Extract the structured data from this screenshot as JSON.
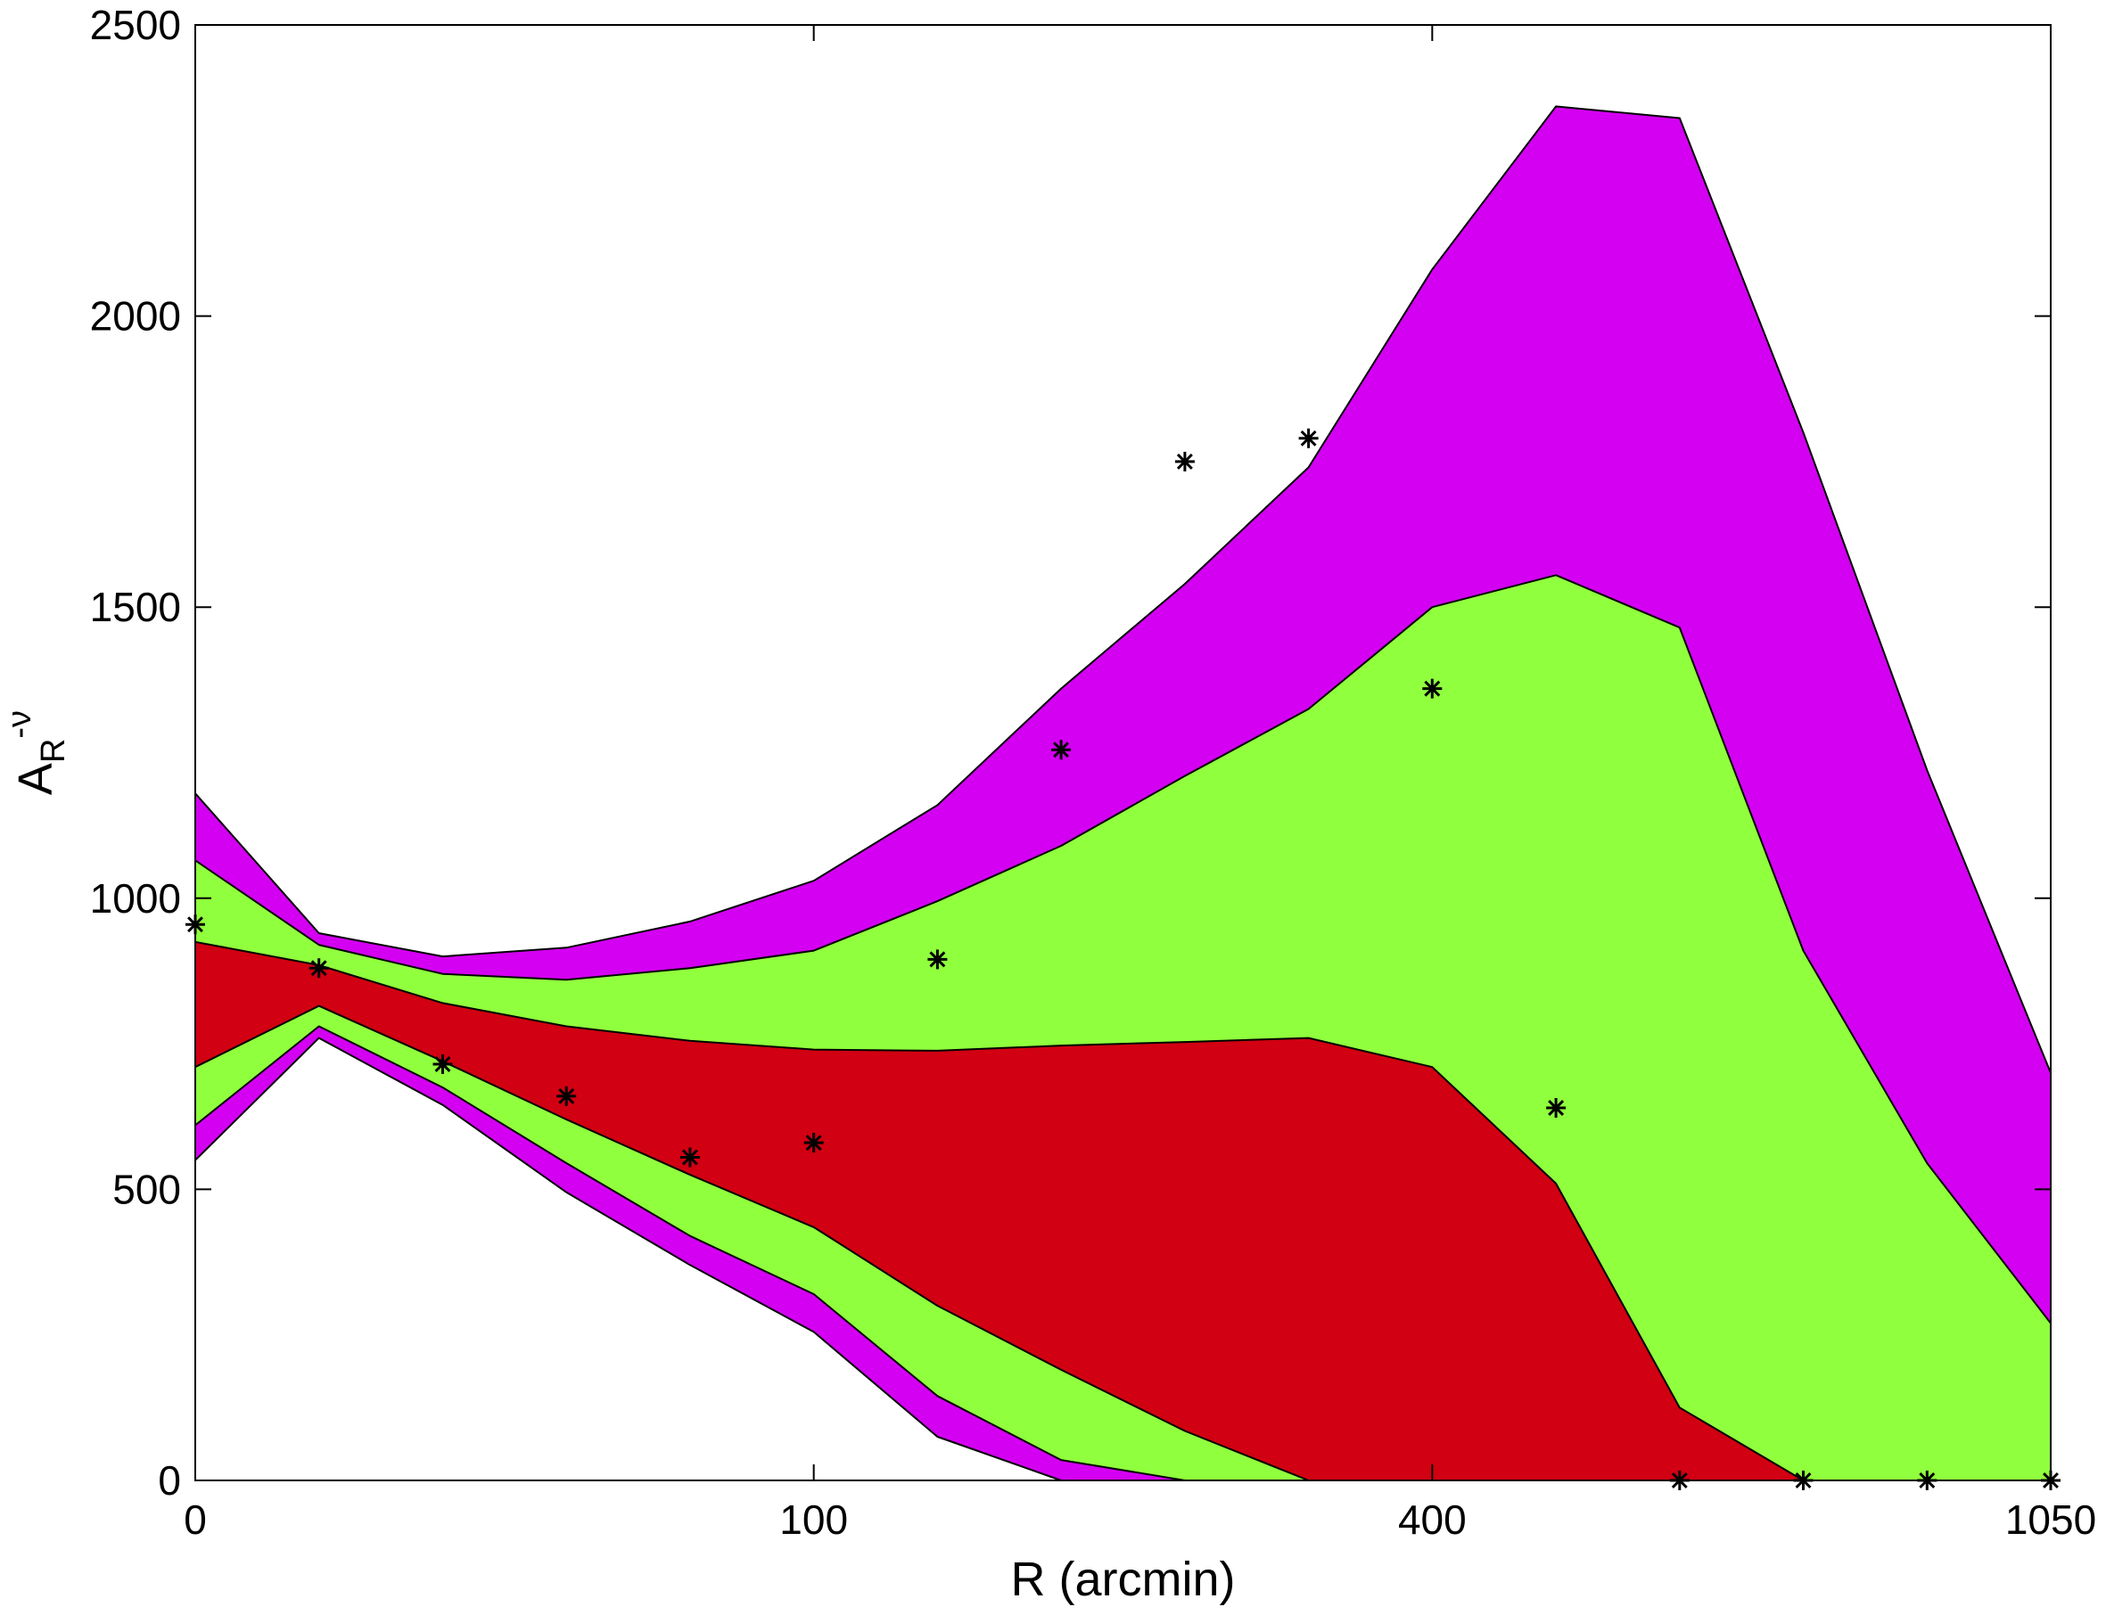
{
  "chart_data": {
    "type": "area",
    "xlabel": "R (arcmin)",
    "ylabel": {
      "base": "A",
      "subscript": "R",
      "superscript": "-ν"
    },
    "x_tick_labels": [
      "0",
      "100",
      "400",
      "1050"
    ],
    "y_ticks": [
      0,
      500,
      1000,
      1500,
      2000,
      2500
    ],
    "y_tick_labels": [
      "0",
      "500",
      "1000",
      "1500",
      "2000",
      "2500"
    ],
    "ylim": [
      0,
      2500
    ],
    "x_index_range": [
      0,
      15
    ],
    "x_tick_positions": [
      0,
      5,
      10,
      15
    ],
    "x_index": [
      0,
      1,
      2,
      3,
      4,
      5,
      6,
      7,
      8,
      9,
      10,
      11,
      12,
      13,
      14,
      15
    ],
    "grid": false,
    "legend": "none",
    "bands": [
      {
        "level": "outer",
        "color": "#d400f2",
        "lower": [
          550,
          760,
          645,
          495,
          370,
          255,
          75,
          0,
          0,
          0,
          0,
          0,
          0,
          0,
          0,
          0
        ],
        "upper": [
          1180,
          940,
          900,
          915,
          960,
          1030,
          1160,
          1360,
          1540,
          1740,
          2080,
          2360,
          2340,
          1800,
          1220,
          700
        ]
      },
      {
        "level": "middle",
        "color": "#90ff3d",
        "lower": [
          610,
          780,
          675,
          545,
          420,
          320,
          145,
          35,
          0,
          0,
          0,
          0,
          0,
          0,
          0,
          0
        ],
        "upper": [
          1065,
          920,
          870,
          860,
          880,
          910,
          995,
          1090,
          1210,
          1325,
          1500,
          1555,
          1465,
          910,
          545,
          270
        ]
      },
      {
        "level": "inner",
        "color": "#d10012",
        "lower": [
          710,
          815,
          720,
          620,
          525,
          435,
          300,
          190,
          85,
          0,
          0,
          0,
          0,
          0,
          0,
          0
        ],
        "upper": [
          925,
          885,
          820,
          780,
          755,
          740,
          738,
          747,
          753,
          760,
          710,
          510,
          125,
          0,
          0,
          0
        ]
      }
    ],
    "points": {
      "marker": "asterisk",
      "color": "#000000",
      "values": [
        955,
        880,
        715,
        660,
        555,
        580,
        895,
        1255,
        1750,
        1790,
        1360,
        640,
        0,
        0,
        0,
        0
      ]
    }
  }
}
